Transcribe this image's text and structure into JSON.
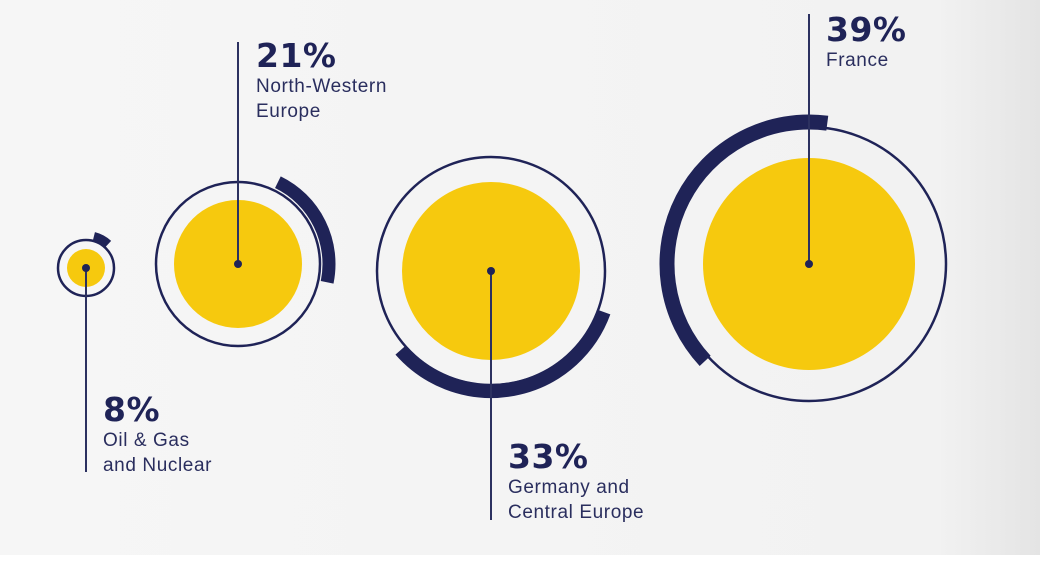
{
  "chart_data": {
    "type": "bubble",
    "colors": {
      "bubble": "#f6c90e",
      "ring": "#1f2357",
      "line": "#2c3160",
      "background": "#f4f4f4"
    },
    "series": [
      {
        "label": "Oil & Gas\nand Nuclear",
        "percent_label": "8%",
        "value": 8
      },
      {
        "label": "North-Western\nEurope",
        "percent_label": "21%",
        "value": 21
      },
      {
        "label": "Germany and\nCentral Europe",
        "percent_label": "33%",
        "value": 33
      },
      {
        "label": "France",
        "percent_label": "39%",
        "value": 39
      }
    ]
  }
}
